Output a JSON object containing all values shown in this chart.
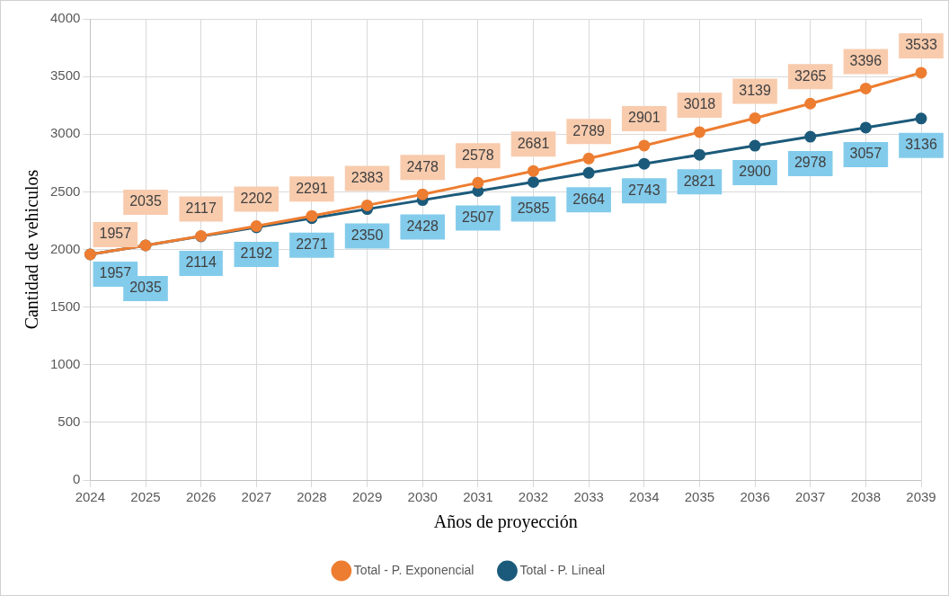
{
  "chart_data": {
    "type": "line",
    "xlabel": "Años de proyección",
    "ylabel": "Cantidad de vehiculos",
    "categories": [
      "2024",
      "2025",
      "2026",
      "2027",
      "2028",
      "2029",
      "2030",
      "2031",
      "2032",
      "2033",
      "2034",
      "2035",
      "2036",
      "2037",
      "2038",
      "2039"
    ],
    "series": [
      {
        "name": "Total - P. Exponencial",
        "color": "#ed7d31",
        "values": [
          1957,
          2035,
          2117,
          2202,
          2291,
          2383,
          2478,
          2578,
          2681,
          2789,
          2901,
          3018,
          3139,
          3265,
          3396,
          3533
        ]
      },
      {
        "name": "Total - P. Lineal",
        "color": "#1b5a7a",
        "values": [
          1957,
          2035,
          2114,
          2192,
          2271,
          2350,
          2428,
          2507,
          2585,
          2664,
          2743,
          2821,
          2900,
          2978,
          3057,
          3136
        ]
      }
    ],
    "ylim": [
      0,
      4000
    ],
    "yticks": [
      0,
      500,
      1000,
      1500,
      2000,
      2500,
      3000,
      3500,
      4000
    ],
    "grid": true,
    "legend": "bottom",
    "marker": "circle",
    "line_style": "solid",
    "data_labels": true
  }
}
